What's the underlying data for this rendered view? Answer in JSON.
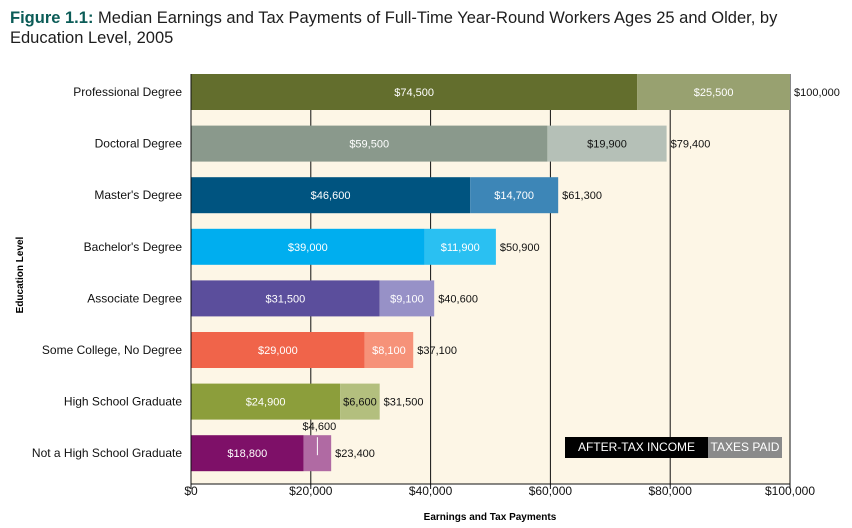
{
  "title_prefix": "Figure 1.1:",
  "title_rest": " Median Earnings and Tax Payments of Full-Time Year-Round Workers Ages 25 and Older, by Education Level, 2005",
  "legend": {
    "after_tax": "AFTER-TAX INCOME",
    "taxes": "TAXES PAID"
  },
  "chart_data": {
    "type": "bar",
    "orientation": "horizontal",
    "stacked": true,
    "xlabel": "Earnings and Tax Payments",
    "ylabel": "Education Level",
    "xlim": [
      0,
      100000
    ],
    "x_ticks": [
      0,
      20000,
      40000,
      60000,
      80000,
      100000
    ],
    "x_tick_labels": [
      "$0",
      "$20,000",
      "$40,000",
      "$60,000",
      "$80,000",
      "$100,000"
    ],
    "grid": true,
    "legend_position": "bottom-right",
    "categories": [
      "Professional Degree",
      "Doctoral Degree",
      "Master's Degree",
      "Bachelor's Degree",
      "Associate Degree",
      "Some College, No Degree",
      "High School Graduate",
      "Not a High School Graduate"
    ],
    "series": [
      {
        "name": "AFTER-TAX INCOME",
        "values": [
          74500,
          59500,
          46600,
          39000,
          31500,
          29000,
          24900,
          18800
        ],
        "labels": [
          "$74,500",
          "$59,500",
          "$46,600",
          "$39,000",
          "$31,500",
          "$29,000",
          "$24,900",
          "$18,800"
        ]
      },
      {
        "name": "TAXES PAID",
        "values": [
          25500,
          19900,
          14700,
          11900,
          9100,
          8100,
          6600,
          4600
        ],
        "labels": [
          "$25,500",
          "$19,900",
          "$14,700",
          "$11,900",
          "$9,100",
          "$8,100",
          "$6,600",
          "$4,600"
        ]
      }
    ],
    "totals": [
      100000,
      79400,
      61300,
      50900,
      40600,
      37100,
      31500,
      23400
    ],
    "total_labels": [
      "$100,000",
      "$79,400",
      "$61,300",
      "$50,900",
      "$40,600",
      "$37,100",
      "$31,500",
      "$23,400"
    ],
    "colors": {
      "background": "#fdf6e6",
      "after_tax": [
        "#636e2d",
        "#8a998c",
        "#005480",
        "#00aeef",
        "#5b4e9c",
        "#f0644a",
        "#8c9e3b",
        "#7e1068"
      ],
      "taxes": [
        "#98a170",
        "#b5c0b7",
        "#3d86b7",
        "#2ac0f2",
        "#9791c7",
        "#f69279",
        "#b3bf7e",
        "#b06aa3"
      ]
    }
  }
}
